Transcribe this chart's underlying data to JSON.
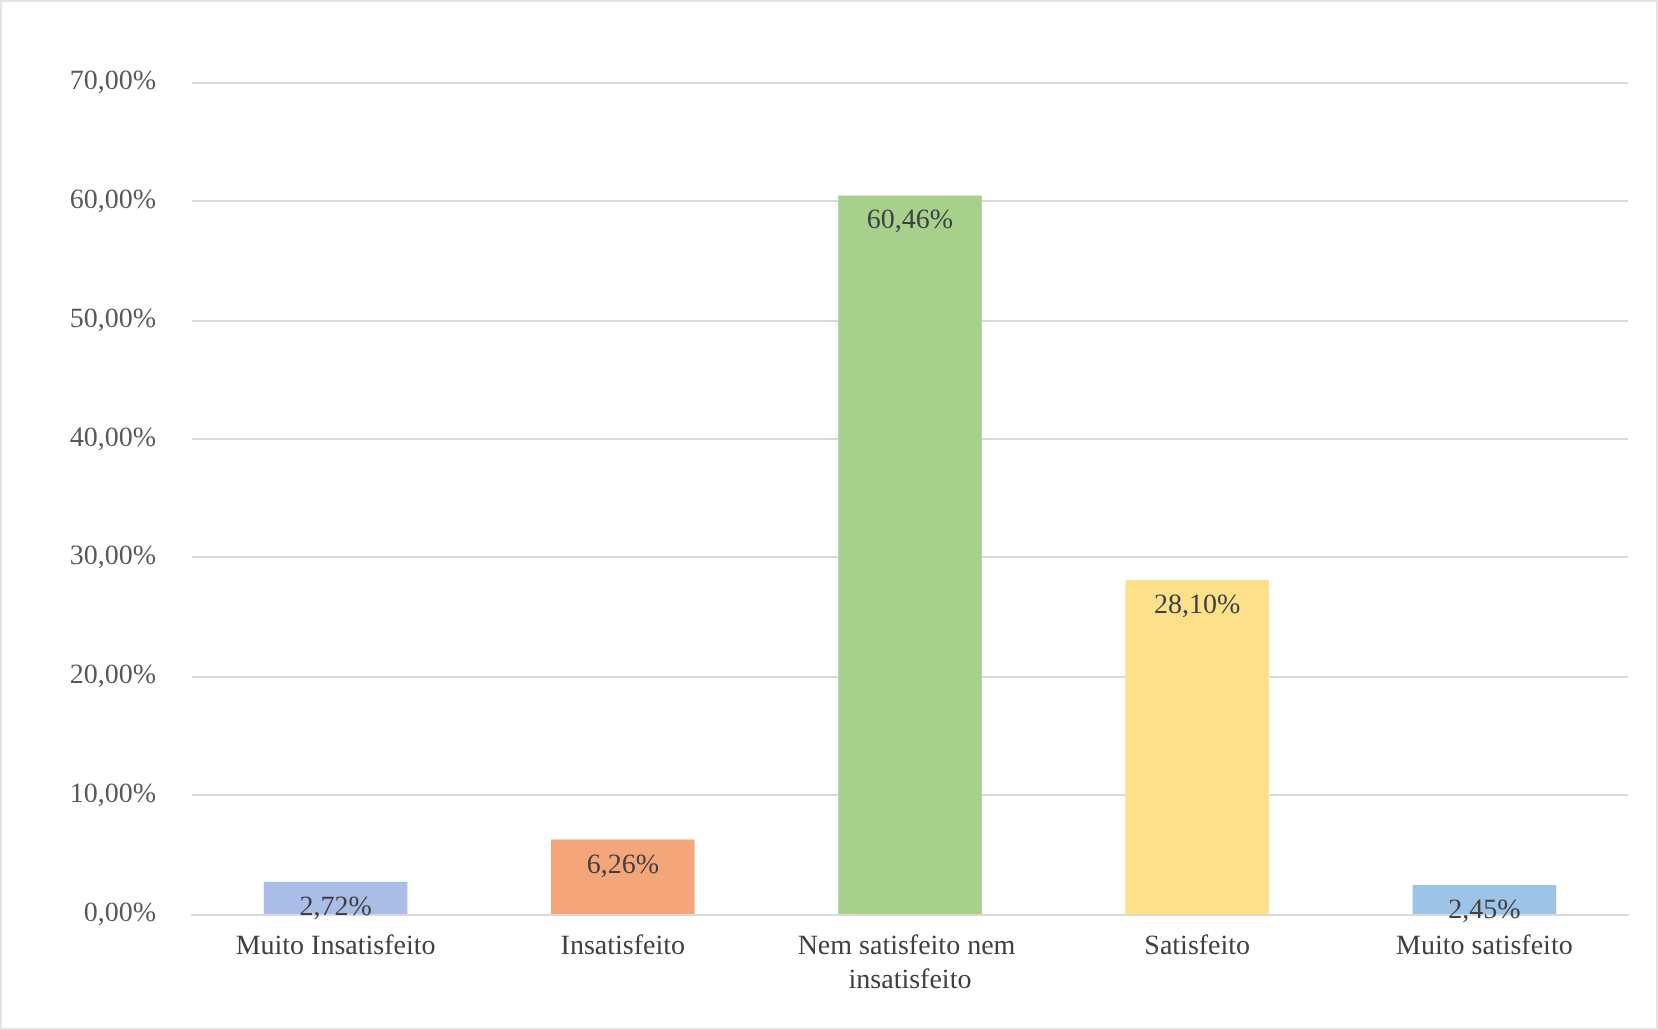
{
  "chart_data": {
    "type": "bar",
    "categories": [
      "Muito Insatisfeito",
      "Insatisfeito",
      "Nem satisfeito nem insatisfeito",
      "Satisfeito",
      "Muito satisfeito"
    ],
    "values": [
      2.72,
      6.26,
      60.46,
      28.1,
      2.45
    ],
    "value_labels": [
      "2,72%",
      "6,26%",
      "60,46%",
      "28,10%",
      "2,45%"
    ],
    "colors": [
      "#a9bde6",
      "#f4a67a",
      "#a8d08d",
      "#ffe08a",
      "#9dc3e6"
    ],
    "ylim": [
      0,
      70
    ],
    "yticks": [
      {
        "value": 0,
        "label": "0,00%"
      },
      {
        "value": 10,
        "label": "10,00%"
      },
      {
        "value": 20,
        "label": "20,00%"
      },
      {
        "value": 30,
        "label": "30,00%"
      },
      {
        "value": 40,
        "label": "40,00%"
      },
      {
        "value": 50,
        "label": "50,00%"
      },
      {
        "value": 60,
        "label": "60,00%"
      },
      {
        "value": 70,
        "label": "70,00%"
      }
    ],
    "grid": "y"
  }
}
